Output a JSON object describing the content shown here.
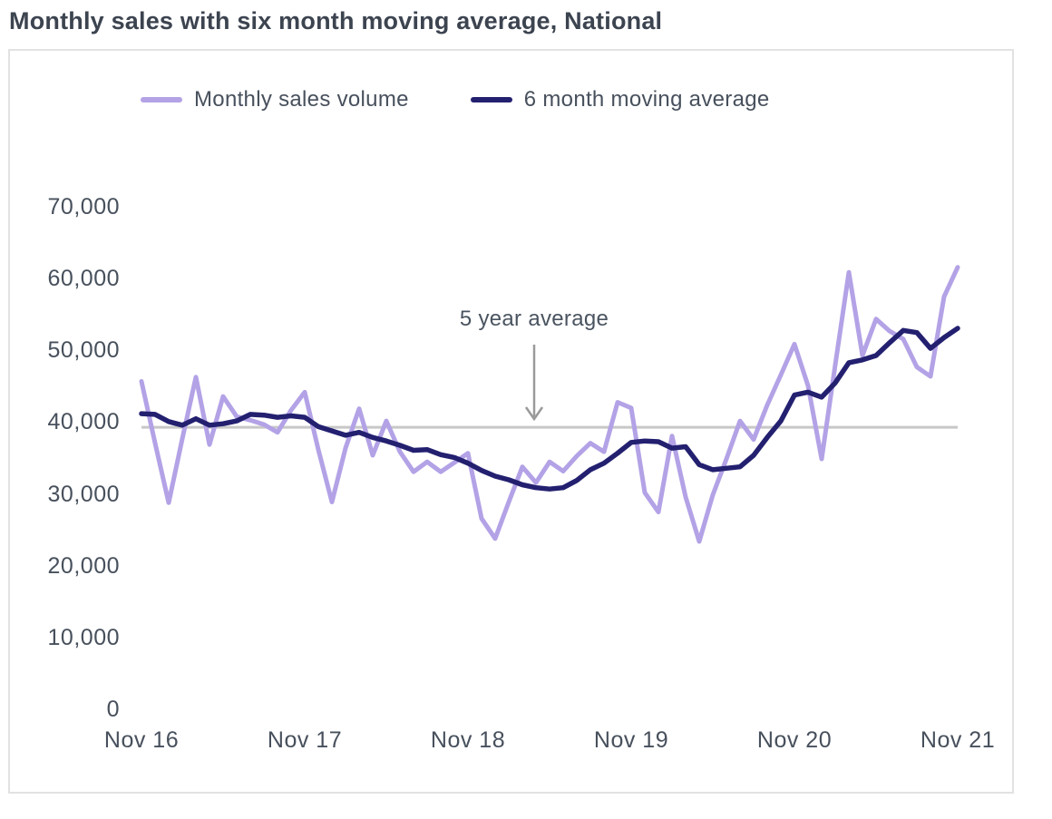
{
  "title": "Monthly sales with six month moving average, National",
  "legend": [
    {
      "label": "Monthly sales volume",
      "color": "#b3a2e6"
    },
    {
      "label": "6 month moving average",
      "color": "#232070"
    }
  ],
  "annotation": {
    "label": "5 year average",
    "value": 39400,
    "arrow_icon": "down-arrow",
    "color": "#9a9a9a"
  },
  "colors": {
    "avg_line": "#c8c8c8",
    "text": "#47505c",
    "panel_border": "#e2e2e2"
  },
  "chart_data": {
    "type": "line",
    "title": "Monthly sales with six month moving average, National",
    "xlabel": "",
    "ylabel": "",
    "ylim": [
      0,
      70000
    ],
    "grid": false,
    "legend_position": "top-center",
    "months": [
      "Nov 16",
      "Dec 16",
      "Jan 17",
      "Feb 17",
      "Mar 17",
      "Apr 17",
      "May 17",
      "Jun 17",
      "Jul 17",
      "Aug 17",
      "Sep 17",
      "Oct 17",
      "Nov 17",
      "Dec 17",
      "Jan 18",
      "Feb 18",
      "Mar 18",
      "Apr 18",
      "May 18",
      "Jun 18",
      "Jul 18",
      "Aug 18",
      "Sep 18",
      "Oct 18",
      "Nov 18",
      "Dec 18",
      "Jan 19",
      "Feb 19",
      "Mar 19",
      "Apr 19",
      "May 19",
      "Jun 19",
      "Jul 19",
      "Aug 19",
      "Sep 19",
      "Oct 19",
      "Nov 19",
      "Dec 19",
      "Jan 20",
      "Feb 20",
      "Mar 20",
      "Apr 20",
      "May 20",
      "Jun 20",
      "Jul 20",
      "Aug 20",
      "Sep 20",
      "Oct 20",
      "Nov 20",
      "Dec 20",
      "Jan 21",
      "Feb 21",
      "Mar 21",
      "Apr 21",
      "May 21",
      "Jun 21",
      "Jul 21",
      "Aug 21",
      "Sep 21",
      "Oct 21",
      "Nov 21"
    ],
    "series": [
      {
        "name": "Monthly sales volume",
        "color": "#b3a2e6",
        "width": 5,
        "values": [
          45800,
          37200,
          28900,
          37800,
          46400,
          37000,
          43700,
          40900,
          40400,
          39800,
          38700,
          41800,
          44300,
          36300,
          29000,
          36500,
          42000,
          35500,
          40300,
          36000,
          33200,
          34600,
          33200,
          34500,
          35800,
          26700,
          23900,
          29000,
          33900,
          31700,
          34600,
          33300,
          35400,
          37200,
          36000,
          42900,
          42100,
          30300,
          27600,
          38200,
          29700,
          23500,
          30000,
          35000,
          40300,
          37700,
          42500,
          46700,
          51000,
          45200,
          35000,
          48100,
          61000,
          49400,
          54500,
          52800,
          51700,
          47800,
          46500,
          57600,
          61700
        ]
      },
      {
        "name": "6 month moving average",
        "color": "#232070",
        "width": 5.5,
        "values": [
          41300,
          41200,
          40200,
          39700,
          40600,
          39700,
          39900,
          40300,
          41200,
          41100,
          40800,
          41000,
          40800,
          39500,
          38900,
          38300,
          38700,
          38000,
          37500,
          36900,
          36200,
          36300,
          35600,
          35200,
          34400,
          33400,
          32600,
          32100,
          31400,
          31000,
          30800,
          31000,
          32000,
          33500,
          34400,
          35800,
          37300,
          37500,
          37400,
          36500,
          36700,
          34200,
          33500,
          33700,
          33900,
          35500,
          38000,
          40300,
          43900,
          44300,
          43600,
          45600,
          48400,
          48800,
          49400,
          51200,
          52900,
          52600,
          50400,
          51900,
          53200
        ]
      }
    ],
    "avg_line": {
      "label": "5 year average",
      "value": 39400
    },
    "yticks": [
      [
        0,
        "0"
      ],
      [
        10000,
        "10,000"
      ],
      [
        20000,
        "20,000"
      ],
      [
        30000,
        "30,000"
      ],
      [
        40000,
        "40,000"
      ],
      [
        50000,
        "50,000"
      ],
      [
        60000,
        "60,000"
      ],
      [
        70000,
        "70,000"
      ]
    ],
    "xticks": [
      [
        0,
        "Nov 16"
      ],
      [
        12,
        "Nov 17"
      ],
      [
        24,
        "Nov 18"
      ],
      [
        36,
        "Nov 19"
      ],
      [
        48,
        "Nov 20"
      ],
      [
        60,
        "Nov 21"
      ]
    ]
  }
}
